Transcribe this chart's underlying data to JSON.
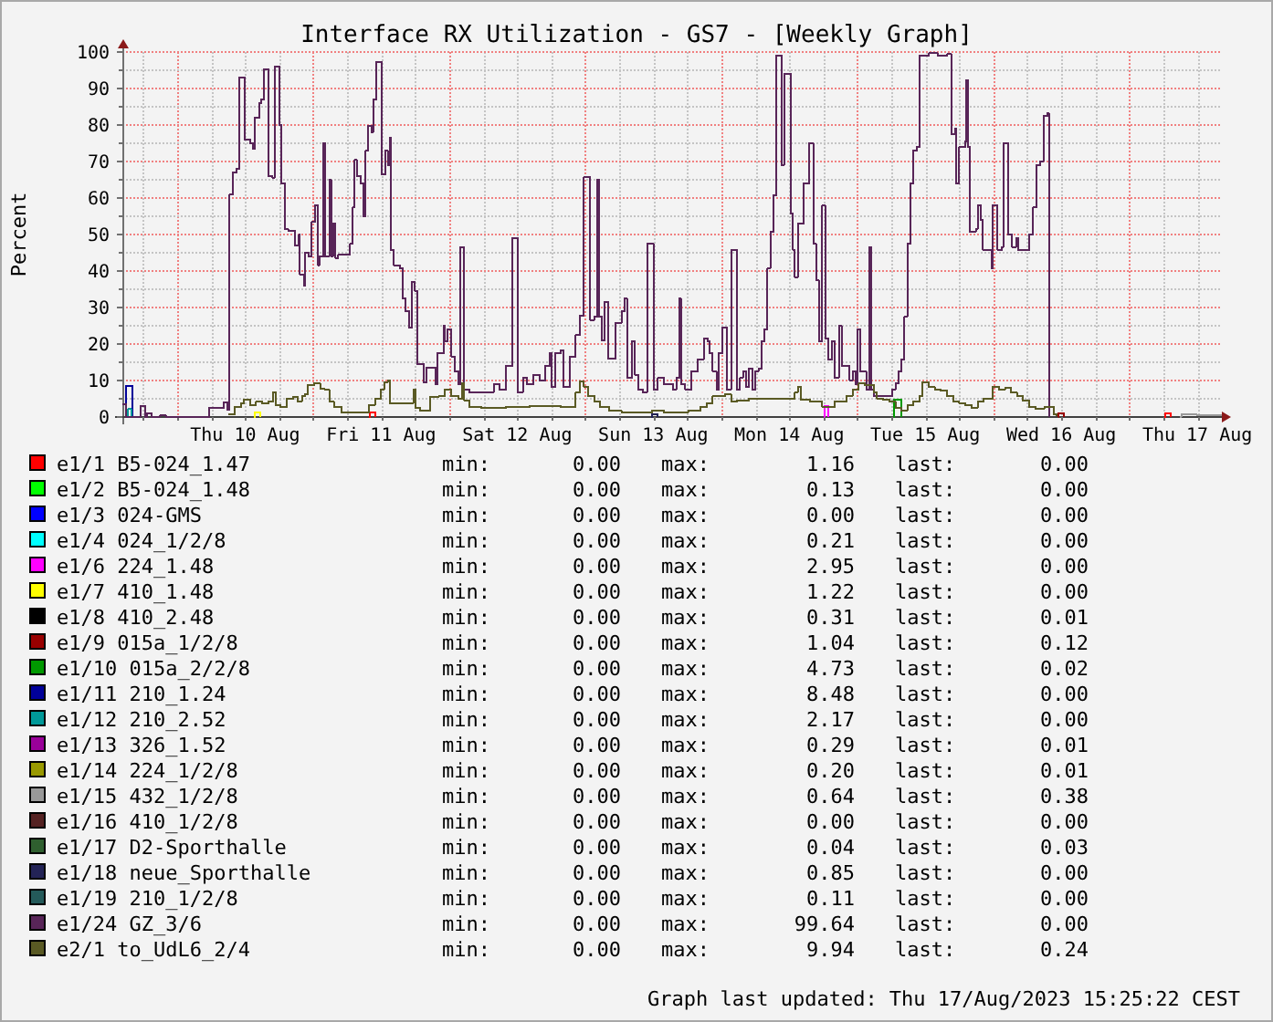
{
  "chart_data": {
    "type": "step",
    "title": "Interface RX Utilization - GS7 - [Weekly Graph]",
    "ylabel": "Percent",
    "xlim": [
      "2023-08-09T14:20",
      "2023-08-17T16:20"
    ],
    "xticks": [
      {
        "value": "2023-08-09T18:00",
        "label": null
      },
      {
        "value": "2023-08-10T00:00",
        "label": null
      },
      {
        "value": "2023-08-10T06:00",
        "label": null
      },
      {
        "value": "2023-08-10T12:00",
        "label": "Thu 10 Aug"
      },
      {
        "value": "2023-08-10T18:00",
        "label": null
      },
      {
        "value": "2023-08-11T00:00",
        "label": null
      },
      {
        "value": "2023-08-11T06:00",
        "label": null
      },
      {
        "value": "2023-08-11T12:00",
        "label": "Fri 11 Aug"
      },
      {
        "value": "2023-08-11T18:00",
        "label": null
      },
      {
        "value": "2023-08-12T00:00",
        "label": null
      },
      {
        "value": "2023-08-12T06:00",
        "label": null
      },
      {
        "value": "2023-08-12T12:00",
        "label": "Sat 12 Aug"
      },
      {
        "value": "2023-08-12T18:00",
        "label": null
      },
      {
        "value": "2023-08-13T00:00",
        "label": null
      },
      {
        "value": "2023-08-13T06:00",
        "label": null
      },
      {
        "value": "2023-08-13T12:00",
        "label": "Sun 13 Aug"
      },
      {
        "value": "2023-08-13T18:00",
        "label": null
      },
      {
        "value": "2023-08-14T00:00",
        "label": null
      },
      {
        "value": "2023-08-14T06:00",
        "label": null
      },
      {
        "value": "2023-08-14T12:00",
        "label": "Mon 14 Aug"
      },
      {
        "value": "2023-08-14T18:00",
        "label": null
      },
      {
        "value": "2023-08-15T00:00",
        "label": null
      },
      {
        "value": "2023-08-15T06:00",
        "label": null
      },
      {
        "value": "2023-08-15T12:00",
        "label": "Tue 15 Aug"
      },
      {
        "value": "2023-08-15T18:00",
        "label": null
      },
      {
        "value": "2023-08-16T00:00",
        "label": null
      },
      {
        "value": "2023-08-16T06:00",
        "label": null
      },
      {
        "value": "2023-08-16T12:00",
        "label": "Wed 16 Aug"
      },
      {
        "value": "2023-08-16T18:00",
        "label": null
      },
      {
        "value": "2023-08-17T00:00",
        "label": null
      },
      {
        "value": "2023-08-17T06:00",
        "label": null
      },
      {
        "value": "2023-08-17T12:00",
        "label": "Thu 17 Aug"
      }
    ],
    "ylim": [
      0,
      100
    ],
    "yticks": [
      0,
      {
        "value": 5,
        "label": null
      },
      10,
      {
        "value": 15,
        "label": null
      },
      20,
      {
        "value": 25,
        "label": null
      },
      30,
      {
        "value": 35,
        "label": null
      },
      40,
      {
        "value": 45,
        "label": null
      },
      50,
      {
        "value": 55,
        "label": null
      },
      60,
      {
        "value": 65,
        "label": null
      },
      70,
      {
        "value": 75,
        "label": null
      },
      80,
      {
        "value": 85,
        "label": null
      },
      90,
      {
        "value": 95,
        "label": null
      },
      100
    ],
    "grid": true,
    "legend": "bottom",
    "series": [
      {
        "name": "e1/1 B5-024_1.47",
        "color": "#ff0000",
        "x": [
          "2023-08-11T09:55",
          "2023-08-11T10:00",
          "2023-08-11T11:00",
          "2023-08-11T11:05",
          "2023-08-17T06:15",
          "2023-08-17T06:20",
          "2023-08-17T07:20"
        ],
        "values": [
          0,
          1.16,
          0,
          null,
          0,
          1.0,
          0
        ]
      },
      {
        "name": "e1/2 B5-024_1.48",
        "color": "#00ff00"
      },
      {
        "name": "e1/3 024-GMS",
        "color": "#0000ff"
      },
      {
        "name": "e1/4 024_1/2/8",
        "color": "#00ffff"
      },
      {
        "name": "e1/6 224_1.48",
        "color": "#ff00ff",
        "x": [
          "2023-08-14T18:05",
          "2023-08-14T18:10",
          "2023-08-14T18:55"
        ],
        "values": [
          0,
          2.95,
          0
        ]
      },
      {
        "name": "e1/7 410_1.48",
        "color": "#ffff00",
        "x": [
          "2023-08-10T13:35",
          "2023-08-10T13:40",
          "2023-08-10T14:40"
        ],
        "values": [
          0,
          1.22,
          0
        ]
      },
      {
        "name": "e1/8 410_2.48",
        "color": "#000000"
      },
      {
        "name": "e1/9 015a_1/2/8",
        "color": "#990000",
        "x": [
          "2023-08-16T11:25",
          "2023-08-16T11:30",
          "2023-08-16T12:30"
        ],
        "values": [
          0,
          1.04,
          0
        ]
      },
      {
        "name": "e1/10 015a_2/2/8",
        "color": "#009900",
        "x": [
          "2023-08-15T06:25",
          "2023-08-15T06:30",
          "2023-08-15T07:45"
        ],
        "values": [
          0,
          4.73,
          0
        ]
      },
      {
        "name": "e1/11 210_1.24",
        "color": "#000099",
        "x": [
          "2023-08-09T14:55",
          "2023-08-09T15:00",
          "2023-08-09T16:10"
        ],
        "values": [
          0,
          8.48,
          0
        ]
      },
      {
        "name": "e1/12 210_2.52",
        "color": "#009999",
        "x": [
          "2023-08-09T15:15",
          "2023-08-09T15:20",
          "2023-08-09T15:55"
        ],
        "values": [
          0,
          2.17,
          0
        ]
      },
      {
        "name": "e1/13 326_1.52",
        "color": "#990099"
      },
      {
        "name": "e1/14 224_1/2/8",
        "color": "#999900"
      },
      {
        "name": "e1/15 432_1/2/8",
        "color": "#999999",
        "x": [
          "2023-08-17T09:00",
          "2023-08-17T09:10",
          "2023-08-17T12:00",
          "2023-08-17T16:20"
        ],
        "values": [
          0,
          0.64,
          0.38,
          0.38
        ]
      },
      {
        "name": "e1/16 410_1/2/8",
        "color": "#552222"
      },
      {
        "name": "e1/17 D2-Sporthalle",
        "color": "#2f5f2f"
      },
      {
        "name": "e1/18 neue_Sporthalle",
        "color": "#232356",
        "x": [
          "2023-08-13T11:40",
          "2023-08-13T11:45",
          "2023-08-13T12:50"
        ],
        "values": [
          0,
          0.85,
          0
        ]
      },
      {
        "name": "e1/19 210_1/2/8",
        "color": "#245a5a"
      },
      {
        "name": "e1/24 GZ_3/6",
        "color": "#582558",
        "x": [
          "2023-08-09T14:20",
          "2023-08-09T15:00",
          "2023-08-09T17:30",
          "2023-08-09T18:20",
          "2023-08-09T18:40",
          "2023-08-09T19:30",
          "2023-08-09T21:00",
          "2023-08-09T22:00",
          "2023-08-10T05:40",
          "2023-08-10T08:15",
          "2023-08-10T08:55",
          "2023-08-10T09:15",
          "2023-08-10T09:50",
          "2023-08-10T10:30",
          "2023-08-10T11:00",
          "2023-08-10T11:55",
          "2023-08-10T12:55",
          "2023-08-10T13:20",
          "2023-08-10T13:45",
          "2023-08-10T14:30",
          "2023-08-10T14:50",
          "2023-08-10T15:20",
          "2023-08-10T16:10",
          "2023-08-10T16:50",
          "2023-08-10T17:10",
          "2023-08-10T18:00",
          "2023-08-10T18:20",
          "2023-08-10T19:00",
          "2023-08-10T19:40",
          "2023-08-10T20:50",
          "2023-08-10T21:30",
          "2023-08-10T21:40",
          "2023-08-10T22:20",
          "2023-08-10T22:35",
          "2023-08-10T23:10",
          "2023-08-10T23:45",
          "2023-08-11T00:20",
          "2023-08-11T00:50",
          "2023-08-11T01:10",
          "2023-08-11T01:45",
          "2023-08-11T02:05",
          "2023-08-11T02:50",
          "2023-08-11T03:10",
          "2023-08-11T03:30",
          "2023-08-11T03:55",
          "2023-08-11T04:25",
          "2023-08-11T06:30",
          "2023-08-11T06:55",
          "2023-08-11T07:20",
          "2023-08-11T07:45",
          "2023-08-11T08:25",
          "2023-08-11T08:50",
          "2023-08-11T09:15",
          "2023-08-11T09:40",
          "2023-08-11T10:20",
          "2023-08-11T10:35",
          "2023-08-11T11:05",
          "2023-08-11T12:05",
          "2023-08-11T12:45",
          "2023-08-11T13:10",
          "2023-08-11T13:30",
          "2023-08-11T13:45",
          "2023-08-11T14:15",
          "2023-08-11T15:20",
          "2023-08-11T15:50",
          "2023-08-11T16:20",
          "2023-08-11T16:55",
          "2023-08-11T17:25",
          "2023-08-11T17:55",
          "2023-08-11T18:25",
          "2023-08-11T19:30",
          "2023-08-11T20:00",
          "2023-08-11T21:35",
          "2023-08-11T21:55",
          "2023-08-11T23:00",
          "2023-08-11T23:15",
          "2023-08-11T23:45",
          "2023-08-12T00:20",
          "2023-08-12T01:00",
          "2023-08-12T01:35",
          "2023-08-12T01:55",
          "2023-08-12T02:40",
          "2023-08-12T03:35",
          "2023-08-12T07:50",
          "2023-08-12T08:55",
          "2023-08-12T10:00",
          "2023-08-12T11:05",
          "2023-08-12T12:05",
          "2023-08-12T13:00",
          "2023-08-12T13:45",
          "2023-08-12T14:50",
          "2023-08-12T15:55",
          "2023-08-12T16:55",
          "2023-08-12T17:45",
          "2023-08-12T18:05",
          "2023-08-12T18:45",
          "2023-08-12T19:40",
          "2023-08-12T20:10",
          "2023-08-12T21:15",
          "2023-08-12T22:20",
          "2023-08-12T23:05",
          "2023-08-12T23:45",
          "2023-08-13T00:50",
          "2023-08-13T01:35",
          "2023-08-13T02:05",
          "2023-08-13T02:25",
          "2023-08-13T02:55",
          "2023-08-13T03:25",
          "2023-08-13T04:00",
          "2023-08-13T05:20",
          "2023-08-13T06:25",
          "2023-08-13T06:55",
          "2023-08-13T07:25",
          "2023-08-13T08:15",
          "2023-08-13T08:45",
          "2023-08-13T09:25",
          "2023-08-13T10:10",
          "2023-08-13T10:55",
          "2023-08-13T12:05",
          "2023-08-13T12:50",
          "2023-08-13T13:55",
          "2023-08-13T15:30",
          "2023-08-13T16:05",
          "2023-08-13T16:35",
          "2023-08-13T16:55",
          "2023-08-13T17:40",
          "2023-08-13T18:45",
          "2023-08-13T19:50",
          "2023-08-13T20:55",
          "2023-08-13T21:35",
          "2023-08-13T21:55",
          "2023-08-13T22:30",
          "2023-08-13T23:10",
          "2023-08-13T23:35",
          "2023-08-14T00:10",
          "2023-08-14T01:00",
          "2023-08-14T01:45",
          "2023-08-14T02:45",
          "2023-08-14T03:20",
          "2023-08-14T03:50",
          "2023-08-14T04:25",
          "2023-08-14T04:55",
          "2023-08-14T05:30",
          "2023-08-14T06:00",
          "2023-08-14T06:35",
          "2023-08-14T07:05",
          "2023-08-14T07:35",
          "2023-08-14T08:10",
          "2023-08-14T08:40",
          "2023-08-14T09:15",
          "2023-08-14T09:45",
          "2023-08-14T10:40",
          "2023-08-14T11:05",
          "2023-08-14T12:15",
          "2023-08-14T12:40",
          "2023-08-14T13:00",
          "2023-08-14T13:30",
          "2023-08-14T14:35",
          "2023-08-14T15:30",
          "2023-08-14T16:15",
          "2023-08-14T16:45",
          "2023-08-14T17:15",
          "2023-08-14T17:50",
          "2023-08-14T18:20",
          "2023-08-14T18:55",
          "2023-08-14T19:30",
          "2023-08-14T20:00",
          "2023-08-14T20:45",
          "2023-08-14T21:15",
          "2023-08-14T22:40",
          "2023-08-14T23:10",
          "2023-08-14T23:45",
          "2023-08-15T00:00",
          "2023-08-15T00:30",
          "2023-08-15T01:35",
          "2023-08-15T02:10",
          "2023-08-15T02:30",
          "2023-08-15T02:55",
          "2023-08-15T06:10",
          "2023-08-15T06:45",
          "2023-08-15T07:15",
          "2023-08-15T07:45",
          "2023-08-15T08:20",
          "2023-08-15T08:50",
          "2023-08-15T09:25",
          "2023-08-15T09:55",
          "2023-08-15T10:30",
          "2023-08-15T11:00",
          "2023-08-15T12:35",
          "2023-08-15T14:15",
          "2023-08-15T15:50",
          "2023-08-15T16:35",
          "2023-08-15T17:15",
          "2023-08-15T17:25",
          "2023-08-15T18:00",
          "2023-08-15T19:05",
          "2023-08-15T19:15",
          "2023-08-15T19:35",
          "2023-08-15T19:50",
          "2023-08-15T20:55",
          "2023-08-15T21:20",
          "2023-08-15T21:50",
          "2023-08-15T22:10",
          "2023-08-15T23:40",
          "2023-08-15T23:55",
          "2023-08-16T00:45",
          "2023-08-16T01:30",
          "2023-08-16T01:50",
          "2023-08-16T02:40",
          "2023-08-16T03:20",
          "2023-08-16T04:00",
          "2023-08-16T04:25",
          "2023-08-16T06:20",
          "2023-08-16T07:00",
          "2023-08-16T07:35",
          "2023-08-16T08:15",
          "2023-08-16T08:50",
          "2023-08-16T09:35",
          "2023-08-16T09:50"
        ],
        "values": [
          3.5,
          0,
          3,
          0,
          1,
          0,
          0.5,
          0,
          2.5,
          4,
          2,
          61,
          67,
          68,
          93,
          76,
          75,
          73.5,
          82,
          86,
          87,
          95.3,
          66,
          65.5,
          96,
          80,
          64,
          51.4,
          51,
          47,
          50,
          39,
          36,
          45,
          44,
          53.4,
          58,
          41.6,
          44,
          75,
          44,
          65,
          44,
          53,
          43.6,
          44.4,
          47.4,
          57.4,
          70.4,
          66,
          64,
          55,
          73,
          79.7,
          78,
          87,
          97.3,
          66.5,
          73,
          69,
          76.4,
          45.7,
          41.6,
          40.8,
          32.4,
          29,
          24.5,
          37,
          34.6,
          14.5,
          9.5,
          13.5,
          9,
          17.5,
          25,
          20.8,
          24,
          16.6,
          12.5,
          9,
          46.6,
          7.5,
          6.7,
          9,
          7.5,
          14,
          49,
          6.7,
          10.8,
          9,
          11.6,
          10,
          14,
          17.5,
          8.3,
          17.5,
          18.3,
          8.3,
          16.6,
          22.5,
          27.8,
          65.7,
          26.6,
          27.5,
          65,
          27.5,
          21,
          31.6,
          16,
          25.8,
          29,
          32.4,
          10.8,
          20.8,
          11.6,
          7.5,
          6.7,
          47.4,
          7.5,
          10.8,
          9,
          7.5,
          10.8,
          32.4,
          9,
          7.5,
          12.5,
          15.8,
          21.6,
          20.8,
          17.5,
          12.5,
          7.5,
          17.5,
          24.5,
          7.5,
          45.8,
          7.5,
          10.8,
          12.5,
          8.3,
          13.3,
          7.5,
          12.5,
          13.3,
          20.8,
          24,
          40.8,
          50.7,
          60.7,
          99,
          69,
          94,
          55.7,
          45.8,
          38.3,
          53,
          64,
          75,
          47.4,
          37.4,
          20.8,
          58,
          21.6,
          15.8,
          20.8,
          10.8,
          25,
          14,
          10,
          12.5,
          9,
          24,
          12.5,
          7.5,
          46.6,
          7.5,
          5.8,
          7.5,
          9.2,
          12.5,
          15.8,
          27.5,
          47.4,
          64,
          73,
          74,
          99,
          99.64,
          99,
          99.4,
          77.4,
          79,
          64,
          74,
          75.5,
          92.3,
          74,
          50.7,
          51.6,
          58,
          54,
          45.8,
          40.8,
          58,
          45.8,
          46.6,
          75,
          50,
          46.6,
          49,
          45.8,
          50,
          57.4,
          69,
          70,
          82.4,
          83.2,
          0
        ]
      },
      {
        "name": "e2/1 to_UdL6_2/4",
        "color": "#5a5a24",
        "x": [
          "2023-08-10T09:05",
          "2023-08-10T10:10",
          "2023-08-10T11:15",
          "2023-08-10T11:45",
          "2023-08-10T12:55",
          "2023-08-10T13:55",
          "2023-08-10T15:00",
          "2023-08-10T16:05",
          "2023-08-10T16:55",
          "2023-08-10T17:25",
          "2023-08-10T18:15",
          "2023-08-10T19:20",
          "2023-08-10T20:25",
          "2023-08-10T21:15",
          "2023-08-10T22:00",
          "2023-08-10T22:35",
          "2023-08-10T23:05",
          "2023-08-11T00:10",
          "2023-08-11T01:15",
          "2023-08-11T02:00",
          "2023-08-11T02:50",
          "2023-08-11T03:40",
          "2023-08-11T05:00",
          "2023-08-11T09:50",
          "2023-08-11T10:55",
          "2023-08-11T11:55",
          "2023-08-11T12:30",
          "2023-08-11T13:10",
          "2023-08-11T13:35",
          "2023-08-11T17:40",
          "2023-08-11T18:05",
          "2023-08-11T18:55",
          "2023-08-11T20:35",
          "2023-08-11T22:10",
          "2023-08-11T23:15",
          "2023-08-12T00:20",
          "2023-08-12T01:35",
          "2023-08-12T02:15",
          "2023-08-12T02:40",
          "2023-08-12T03:35",
          "2023-08-12T05:40",
          "2023-08-12T10:00",
          "2023-08-12T14:15",
          "2023-08-12T19:40",
          "2023-08-12T22:20",
          "2023-08-12T23:05",
          "2023-08-12T23:45",
          "2023-08-13T00:30",
          "2023-08-13T01:35",
          "2023-08-13T02:35",
          "2023-08-13T04:15",
          "2023-08-13T06:25",
          "2023-08-13T09:35",
          "2023-08-13T11:45",
          "2023-08-13T13:55",
          "2023-08-13T16:05",
          "2023-08-13T18:10",
          "2023-08-13T20:20",
          "2023-08-13T21:25",
          "2023-08-13T22:30",
          "2023-08-14T00:40",
          "2023-08-14T01:45",
          "2023-08-14T02:45",
          "2023-08-14T04:55",
          "2023-08-14T09:15",
          "2023-08-14T13:00",
          "2023-08-14T13:30",
          "2023-08-14T14:05",
          "2023-08-14T15:40",
          "2023-08-14T17:50",
          "2023-08-14T20:00",
          "2023-08-14T22:05",
          "2023-08-14T23:10",
          "2023-08-15T00:15",
          "2023-08-15T01:20",
          "2023-08-15T02:55",
          "2023-08-15T03:30",
          "2023-08-15T04:35",
          "2023-08-15T05:40",
          "2023-08-15T06:45",
          "2023-08-15T07:45",
          "2023-08-15T08:50",
          "2023-08-15T09:55",
          "2023-08-15T11:00",
          "2023-08-15T11:30",
          "2023-08-15T12:35",
          "2023-08-15T13:40",
          "2023-08-15T14:45",
          "2023-08-15T15:50",
          "2023-08-15T16:55",
          "2023-08-15T18:00",
          "2023-08-15T19:05",
          "2023-08-15T20:10",
          "2023-08-15T21:15",
          "2023-08-15T22:15",
          "2023-08-15T23:55",
          "2023-08-16T01:00",
          "2023-08-16T02:05",
          "2023-08-16T03:05",
          "2023-08-16T04:10",
          "2023-08-16T05:15",
          "2023-08-16T06:20",
          "2023-08-16T07:25",
          "2023-08-16T09:00",
          "2023-08-16T10:40",
          "2023-08-16T11:10"
        ],
        "values": [
          0.8,
          2.8,
          3.8,
          4.7,
          3.3,
          4.2,
          3.8,
          4.2,
          6.7,
          3.3,
          2.8,
          5,
          5.5,
          4.2,
          5.8,
          6.2,
          8.8,
          9.2,
          7.8,
          7.5,
          4.2,
          2.8,
          1.2,
          3.3,
          5,
          7.5,
          9.5,
          9.94,
          3.8,
          7.5,
          2.5,
          1.7,
          5.5,
          5.8,
          7.5,
          5.8,
          5,
          9.2,
          4.5,
          2.8,
          2.5,
          2.8,
          3,
          2.8,
          6.7,
          9.7,
          8.3,
          5.8,
          4.2,
          2.8,
          1.7,
          1.3,
          1.2,
          1.7,
          1.3,
          1.2,
          1.7,
          2.8,
          3.8,
          5.8,
          6.2,
          4.2,
          4.5,
          5,
          5,
          6.7,
          8.3,
          4.7,
          4.2,
          2.8,
          4.2,
          5.8,
          7.5,
          9.2,
          8.7,
          6.7,
          5,
          4.7,
          4.2,
          2.5,
          1.7,
          3.3,
          4.2,
          5.8,
          9.5,
          8.3,
          7.5,
          7.2,
          5.8,
          4.2,
          3.7,
          3.3,
          2.5,
          4.2,
          5,
          8.3,
          7.5,
          8,
          6.7,
          5.8,
          4.5,
          2.8,
          2.2,
          2.8,
          0.8,
          0.2
        ]
      }
    ],
    "annotations": [
      "min: 0.00 max: 1.16 last: 0.00",
      "min: 0.00 max: 0.13 last: 0.00",
      "min: 0.00 max: 0.00 last: 0.00",
      "min: 0.00 max: 0.21 last: 0.00",
      "min: 0.00 max: 2.95 last: 0.00",
      "min: 0.00 max: 1.22 last: 0.00",
      "min: 0.00 max: 0.31 last: 0.01",
      "min: 0.00 max: 1.04 last: 0.12",
      "min: 0.00 max: 4.73 last: 0.02",
      "min: 0.00 max: 8.48 last: 0.00",
      "min: 0.00 max: 2.17 last: 0.00",
      "min: 0.00 max: 0.29 last: 0.01",
      "min: 0.00 max: 0.20 last: 0.01",
      "min: 0.00 max: 0.64 last: 0.38",
      "min: 0.00 max: 0.00 last: 0.00",
      "min: 0.00 max: 0.04 last: 0.03",
      "min: 0.00 max: 0.85 last: 0.00",
      "min: 0.00 max: 0.11 last: 0.00",
      "min: 0.00 max: 99.64 last: 0.00",
      "min: 0.00 max: 9.94 last: 0.24",
      "Graph last updated: Thu 17/Aug/2023 15:25:22 CEST"
    ]
  }
}
